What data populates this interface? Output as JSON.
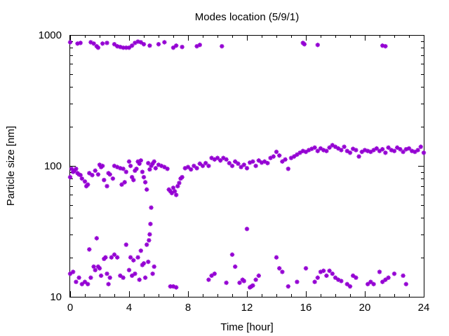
{
  "chart_data": {
    "type": "scatter",
    "title": "Modes location (5/9/1)",
    "xlabel": "Time [hour]",
    "ylabel": "Particle size [nm]",
    "xlim": [
      0,
      24
    ],
    "ylim": [
      10,
      1000
    ],
    "yscale": "log",
    "xticks": [
      0,
      4,
      8,
      12,
      16,
      20,
      24
    ],
    "xtick_labels": [
      "0",
      "4",
      "8",
      "12",
      "16",
      "20",
      "24"
    ],
    "yticks": [
      10,
      100,
      1000
    ],
    "ytick_labels": [
      "10",
      "100",
      "1000"
    ],
    "grid": false,
    "legend": "none",
    "marker": "asterisk",
    "color": "#9400d3",
    "series": [
      {
        "points": [
          [
            0.0,
            880
          ],
          [
            0.5,
            860
          ],
          [
            0.7,
            870
          ],
          [
            1.4,
            880
          ],
          [
            1.6,
            860
          ],
          [
            1.8,
            820
          ],
          [
            1.9,
            800
          ],
          [
            2.2,
            860
          ],
          [
            2.5,
            870
          ],
          [
            3.0,
            850
          ],
          [
            3.2,
            820
          ],
          [
            3.4,
            810
          ],
          [
            3.6,
            800
          ],
          [
            3.8,
            800
          ],
          [
            4.0,
            800
          ],
          [
            4.2,
            830
          ],
          [
            4.4,
            870
          ],
          [
            4.6,
            890
          ],
          [
            4.8,
            880
          ],
          [
            5.0,
            850
          ],
          [
            5.4,
            830
          ],
          [
            6.0,
            850
          ],
          [
            6.4,
            880
          ],
          [
            7.0,
            800
          ],
          [
            7.2,
            830
          ],
          [
            7.6,
            810
          ],
          [
            8.6,
            820
          ],
          [
            8.8,
            840
          ],
          [
            10.3,
            820
          ],
          [
            15.8,
            870
          ],
          [
            15.9,
            850
          ],
          [
            16.8,
            840
          ],
          [
            21.2,
            830
          ],
          [
            21.4,
            820
          ],
          [
            0.0,
            82
          ],
          [
            0.1,
            95
          ],
          [
            0.2,
            90
          ],
          [
            0.3,
            92
          ],
          [
            0.4,
            95
          ],
          [
            0.5,
            88
          ],
          [
            0.6,
            86
          ],
          [
            0.7,
            85
          ],
          [
            0.8,
            80
          ],
          [
            1.0,
            76
          ],
          [
            1.1,
            70
          ],
          [
            1.2,
            72
          ],
          [
            1.3,
            88
          ],
          [
            1.5,
            85
          ],
          [
            1.7,
            92
          ],
          [
            1.9,
            86
          ],
          [
            2.0,
            102
          ],
          [
            2.1,
            98
          ],
          [
            2.2,
            100
          ],
          [
            2.3,
            78
          ],
          [
            2.5,
            70
          ],
          [
            2.6,
            88
          ],
          [
            2.7,
            86
          ],
          [
            2.9,
            80
          ],
          [
            3.0,
            100
          ],
          [
            3.2,
            98
          ],
          [
            3.4,
            96
          ],
          [
            3.5,
            72
          ],
          [
            3.6,
            95
          ],
          [
            3.7,
            75
          ],
          [
            3.8,
            90
          ],
          [
            4.0,
            108
          ],
          [
            4.1,
            100
          ],
          [
            4.2,
            82
          ],
          [
            4.3,
            78
          ],
          [
            4.4,
            92
          ],
          [
            4.5,
            95
          ],
          [
            4.6,
            108
          ],
          [
            4.7,
            104
          ],
          [
            4.8,
            110
          ],
          [
            4.9,
            90
          ],
          [
            5.0,
            82
          ],
          [
            5.1,
            75
          ],
          [
            5.2,
            66
          ],
          [
            5.3,
            105
          ],
          [
            5.4,
            94
          ],
          [
            5.5,
            100
          ],
          [
            5.6,
            104
          ],
          [
            5.7,
            108
          ],
          [
            5.8,
            96
          ],
          [
            6.0,
            102
          ],
          [
            6.2,
            100
          ],
          [
            6.4,
            98
          ],
          [
            6.6,
            95
          ],
          [
            6.7,
            66
          ],
          [
            6.8,
            64
          ],
          [
            6.9,
            62
          ],
          [
            7.0,
            68
          ],
          [
            7.1,
            64
          ],
          [
            7.2,
            60
          ],
          [
            7.3,
            70
          ],
          [
            7.4,
            74
          ],
          [
            7.5,
            80
          ],
          [
            7.6,
            82
          ],
          [
            7.8,
            96
          ],
          [
            8.0,
            98
          ],
          [
            8.2,
            94
          ],
          [
            8.4,
            100
          ],
          [
            8.6,
            96
          ],
          [
            8.8,
            104
          ],
          [
            9.0,
            100
          ],
          [
            9.2,
            105
          ],
          [
            9.4,
            100
          ],
          [
            9.6,
            115
          ],
          [
            9.8,
            112
          ],
          [
            10.0,
            115
          ],
          [
            10.2,
            110
          ],
          [
            10.4,
            115
          ],
          [
            10.6,
            112
          ],
          [
            10.8,
            105
          ],
          [
            11.0,
            100
          ],
          [
            11.2,
            108
          ],
          [
            11.4,
            104
          ],
          [
            11.6,
            98
          ],
          [
            11.8,
            102
          ],
          [
            12.0,
            96
          ],
          [
            12.2,
            106
          ],
          [
            12.4,
            108
          ],
          [
            12.6,
            100
          ],
          [
            12.8,
            110
          ],
          [
            13.0,
            106
          ],
          [
            13.2,
            108
          ],
          [
            13.4,
            105
          ],
          [
            13.6,
            115
          ],
          [
            13.8,
            118
          ],
          [
            14.0,
            128
          ],
          [
            14.2,
            120
          ],
          [
            14.4,
            108
          ],
          [
            14.6,
            112
          ],
          [
            14.8,
            95
          ],
          [
            15.0,
            115
          ],
          [
            15.2,
            118
          ],
          [
            15.4,
            122
          ],
          [
            15.6,
            126
          ],
          [
            15.8,
            130
          ],
          [
            16.0,
            128
          ],
          [
            16.2,
            132
          ],
          [
            16.4,
            135
          ],
          [
            16.6,
            138
          ],
          [
            16.8,
            130
          ],
          [
            17.0,
            136
          ],
          [
            17.2,
            132
          ],
          [
            17.4,
            130
          ],
          [
            17.6,
            138
          ],
          [
            17.8,
            144
          ],
          [
            18.0,
            140
          ],
          [
            18.2,
            136
          ],
          [
            18.4,
            132
          ],
          [
            18.6,
            140
          ],
          [
            18.8,
            130
          ],
          [
            19.0,
            126
          ],
          [
            19.2,
            135
          ],
          [
            19.4,
            132
          ],
          [
            19.6,
            118
          ],
          [
            19.8,
            128
          ],
          [
            20.0,
            132
          ],
          [
            20.2,
            130
          ],
          [
            20.4,
            128
          ],
          [
            20.6,
            132
          ],
          [
            20.8,
            136
          ],
          [
            21.0,
            130
          ],
          [
            21.2,
            134
          ],
          [
            21.4,
            126
          ],
          [
            21.6,
            138
          ],
          [
            21.8,
            132
          ],
          [
            22.0,
            130
          ],
          [
            22.2,
            138
          ],
          [
            22.4,
            134
          ],
          [
            22.6,
            128
          ],
          [
            22.8,
            134
          ],
          [
            23.0,
            136
          ],
          [
            23.2,
            130
          ],
          [
            23.4,
            128
          ],
          [
            23.6,
            132
          ],
          [
            23.8,
            140
          ],
          [
            24.0,
            126
          ],
          [
            0.0,
            15
          ],
          [
            0.2,
            15.5
          ],
          [
            0.4,
            13
          ],
          [
            0.6,
            14
          ],
          [
            0.8,
            12.5
          ],
          [
            1.0,
            13
          ],
          [
            1.2,
            12.5
          ],
          [
            1.3,
            23
          ],
          [
            1.4,
            14
          ],
          [
            1.6,
            17
          ],
          [
            1.7,
            16
          ],
          [
            1.8,
            28
          ],
          [
            1.9,
            17
          ],
          [
            2.0,
            16.5
          ],
          [
            2.1,
            14.5
          ],
          [
            2.3,
            19.5
          ],
          [
            2.4,
            20
          ],
          [
            2.5,
            15
          ],
          [
            2.6,
            12.5
          ],
          [
            2.7,
            14
          ],
          [
            2.8,
            20
          ],
          [
            3.0,
            21
          ],
          [
            3.2,
            20
          ],
          [
            3.4,
            14.5
          ],
          [
            3.6,
            14
          ],
          [
            3.8,
            25
          ],
          [
            4.0,
            16
          ],
          [
            4.1,
            20
          ],
          [
            4.2,
            14.5
          ],
          [
            4.3,
            19
          ],
          [
            4.4,
            15
          ],
          [
            4.6,
            20
          ],
          [
            4.7,
            13.5
          ],
          [
            4.8,
            22.5
          ],
          [
            4.9,
            17.5
          ],
          [
            5.0,
            18
          ],
          [
            5.1,
            14
          ],
          [
            5.2,
            25
          ],
          [
            5.3,
            18.5
          ],
          [
            5.35,
            27
          ],
          [
            5.4,
            30
          ],
          [
            5.45,
            36
          ],
          [
            5.5,
            48
          ],
          [
            5.6,
            15
          ],
          [
            5.7,
            17
          ],
          [
            6.8,
            12
          ],
          [
            7.0,
            12
          ],
          [
            7.2,
            11.8
          ],
          [
            9.4,
            13.5
          ],
          [
            9.6,
            14.5
          ],
          [
            9.8,
            15
          ],
          [
            10.6,
            12.8
          ],
          [
            11.0,
            21
          ],
          [
            11.2,
            17
          ],
          [
            11.5,
            12.8
          ],
          [
            11.7,
            13.5
          ],
          [
            11.8,
            13.2
          ],
          [
            12.0,
            33
          ],
          [
            12.2,
            11.8
          ],
          [
            12.3,
            12
          ],
          [
            12.4,
            12.2
          ],
          [
            12.6,
            13.5
          ],
          [
            12.8,
            14.5
          ],
          [
            14.0,
            20
          ],
          [
            14.2,
            16.5
          ],
          [
            14.4,
            15.5
          ],
          [
            14.8,
            12
          ],
          [
            15.4,
            13
          ],
          [
            16.0,
            16.5
          ],
          [
            16.6,
            13
          ],
          [
            16.8,
            14
          ],
          [
            17.0,
            15.5
          ],
          [
            17.2,
            15.8
          ],
          [
            17.4,
            14.5
          ],
          [
            17.6,
            15.8
          ],
          [
            17.8,
            15
          ],
          [
            18.0,
            14
          ],
          [
            18.2,
            13.5
          ],
          [
            18.4,
            13.2
          ],
          [
            18.8,
            12.5
          ],
          [
            19.0,
            12
          ],
          [
            19.2,
            14.5
          ],
          [
            19.4,
            14
          ],
          [
            20.2,
            12.5
          ],
          [
            20.4,
            13
          ],
          [
            20.6,
            12.5
          ],
          [
            21.0,
            15.5
          ],
          [
            21.2,
            13
          ],
          [
            21.4,
            13.5
          ],
          [
            21.6,
            14
          ],
          [
            22.0,
            15
          ],
          [
            22.6,
            14.5
          ],
          [
            22.8,
            12.5
          ]
        ]
      }
    ]
  }
}
